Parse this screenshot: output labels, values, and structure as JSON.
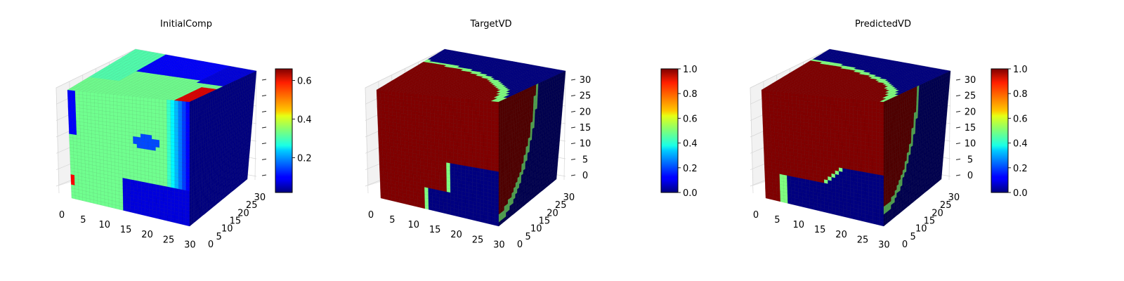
{
  "chart_data": [
    {
      "type": "voxel",
      "title": "InitialComp",
      "colormap": "jet",
      "grid_size": 32,
      "x_ticks": [
        "0",
        "5",
        "10",
        "15",
        "20",
        "25",
        "30"
      ],
      "y_ticks": [
        "0",
        "5",
        "10",
        "15",
        "20",
        "25",
        "30"
      ],
      "z_ticks": [],
      "colorbar": {
        "min": 0.02,
        "max": 0.66,
        "ticks": [
          0.2,
          0.4,
          0.6
        ],
        "tick_labels": [
          "0.2",
          "0.4",
          "0.6"
        ]
      },
      "field_description": "composition field ~0.3 interior, low (~0.05) near far/right boundary, hot spot ~0.65 near top-right edge"
    },
    {
      "type": "voxel",
      "title": "TargetVD",
      "colormap": "jet",
      "grid_size": 32,
      "x_ticks": [
        "0",
        "5",
        "10",
        "15",
        "20",
        "25",
        "30"
      ],
      "y_ticks": [
        "0",
        "5",
        "10",
        "15",
        "20",
        "25",
        "30"
      ],
      "z_ticks": [
        "0",
        "5",
        "10",
        "15",
        "20",
        "25",
        "30"
      ],
      "colorbar": {
        "min": 0.0,
        "max": 1.0,
        "ticks": [
          0.0,
          0.2,
          0.4,
          0.6,
          0.8,
          1.0
        ],
        "tick_labels": [
          "0.0",
          "0.2",
          "0.4",
          "0.6",
          "0.8",
          "1.0"
        ]
      },
      "field_description": "binary volume: 1.0 inside curved region, 0.0 outside"
    },
    {
      "type": "voxel",
      "title": "PredictedVD",
      "colormap": "jet",
      "grid_size": 32,
      "x_ticks": [
        "0",
        "5",
        "10",
        "15",
        "20",
        "25",
        "30"
      ],
      "y_ticks": [
        "0",
        "5",
        "10",
        "15",
        "20",
        "25",
        "30"
      ],
      "z_ticks": [
        "0",
        "5",
        "10",
        "15",
        "20",
        "25",
        "30"
      ],
      "colorbar": {
        "min": 0.0,
        "max": 1.0,
        "ticks": [
          0.0,
          0.2,
          0.4,
          0.6,
          0.8,
          1.0
        ],
        "tick_labels": [
          "0.0",
          "0.2",
          "0.4",
          "0.6",
          "0.8",
          "1.0"
        ]
      },
      "field_description": "predicted binary volume close to target"
    }
  ]
}
